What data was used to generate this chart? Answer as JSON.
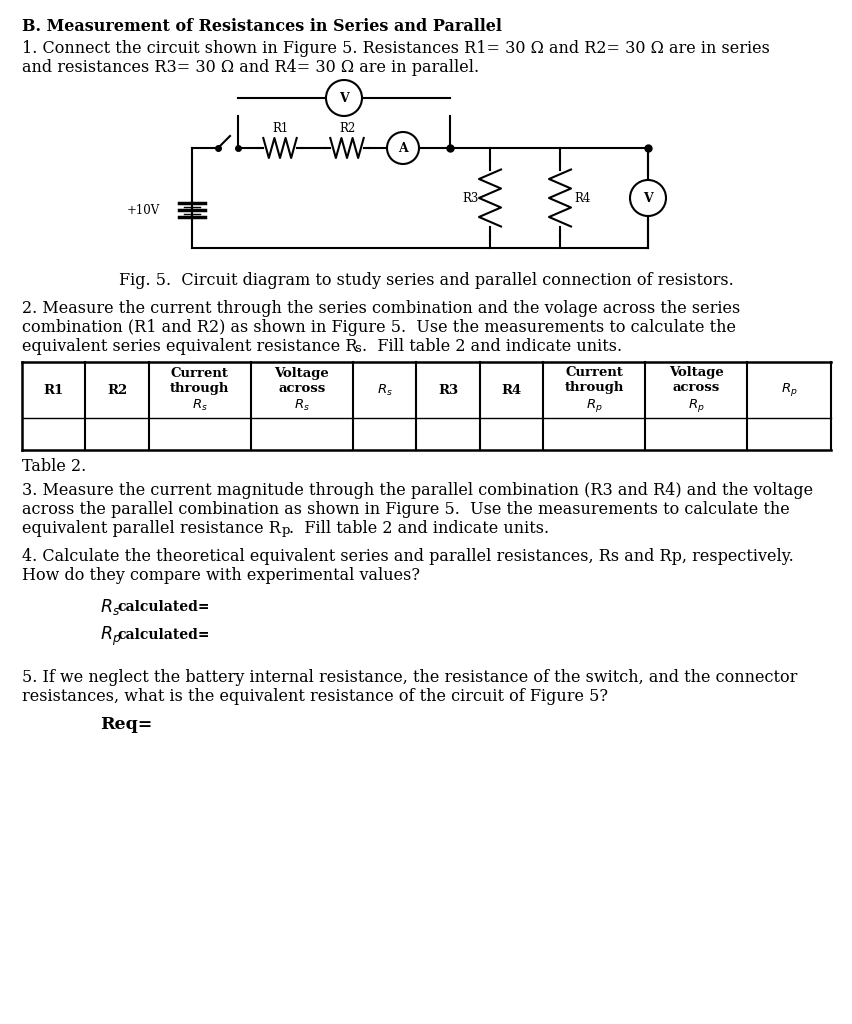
{
  "bg_color": "#ffffff",
  "title_bold": "B. Measurement of Resistances in Series and Parallel",
  "para1_line1": "1. Connect the circuit shown in Figure 5. Resistances R1= 30 Ω and R2= 30 Ω are in series",
  "para1_line2": "and resistances R3= 30 Ω and R4= 30 Ω are in parallel.",
  "fig_caption": "Fig. 5.  Circuit diagram to study series and parallel connection of resistors.",
  "para2_line1": "2. Measure the current through the series combination and the volage across the series",
  "para2_line2": "combination (R1 and R2) as shown in Figure 5.  Use the measurements to calculate the",
  "para2_line3": "equivalent series equivalent resistance Rs.  Fill table 2 and indicate units.",
  "table_caption": "Table 2.",
  "para3_line1": "3. Measure the current magnitude through the parallel combination (R3 and R4) and the voltage",
  "para3_line2": "across the parallel combination as shown in Figure 5.  Use the measurements to calculate the",
  "para3_line3": "equivalent parallel resistance Rp.  Fill table 2 and indicate units.",
  "para4_line1": "4. Calculate the theoretical equivalent series and parallel resistances, Rs and Rp, respectively.",
  "para4_line2": "How do they compare with experimental values?",
  "para5_line1": "5. If we neglect the battery internal resistance, the resistance of the switch, and the connector",
  "para5_line2": "resistances, what is the equivalent resistance of the circuit of Figure 5?"
}
